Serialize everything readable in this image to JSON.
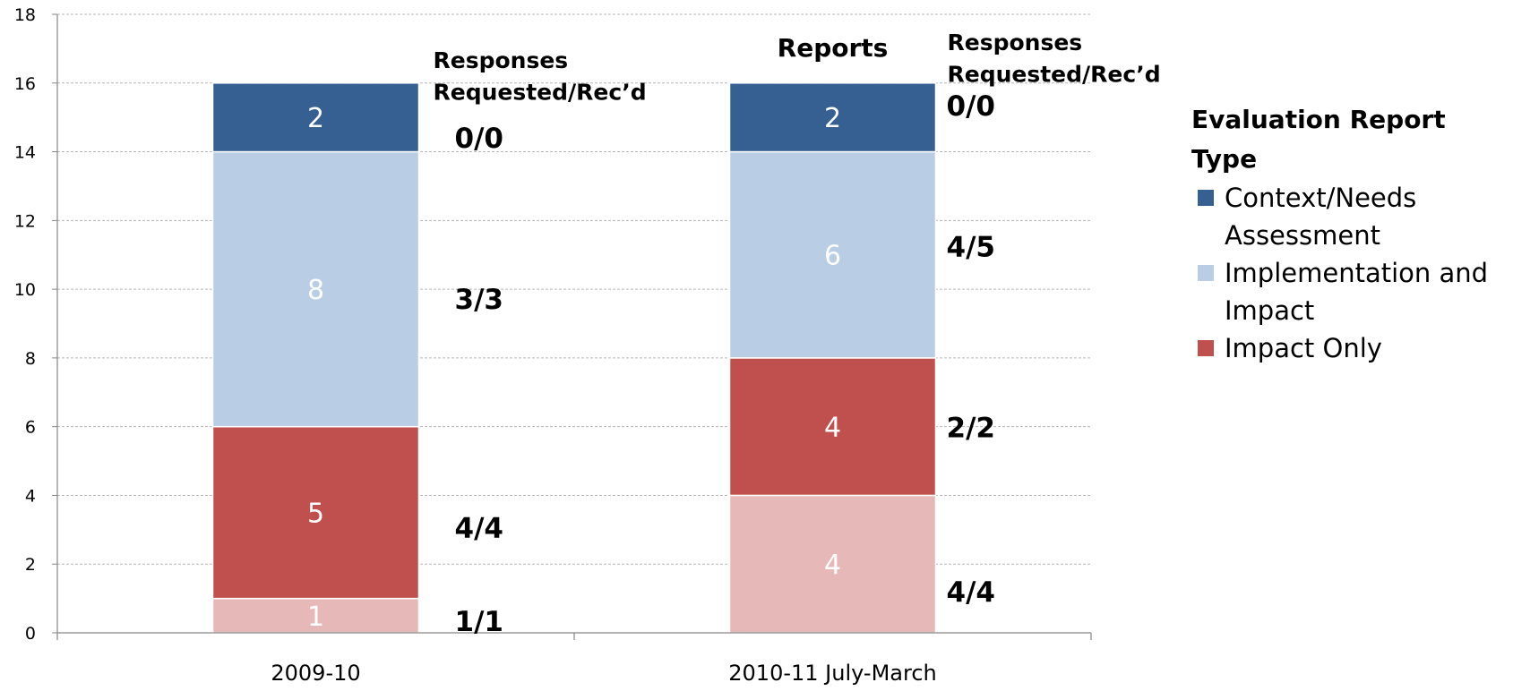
{
  "chart_data": {
    "type": "bar",
    "stacked": true,
    "categories": [
      "2009-10",
      "2010-11  July-March"
    ],
    "series": [
      {
        "name": "Impact Only",
        "color": "#E6B8B7",
        "values": [
          1,
          4
        ]
      },
      {
        "name": "Impact Only",
        "color": "#C0504D",
        "values": [
          5,
          4
        ]
      },
      {
        "name": "Implementation and Impact",
        "color": "#B9CDE5",
        "values": [
          8,
          6
        ]
      },
      {
        "name": "Context/Needs Assessment",
        "color": "#366092",
        "values": [
          2,
          2
        ]
      }
    ],
    "ylim": [
      0,
      18
    ],
    "yticks": [
      0,
      2,
      4,
      6,
      8,
      10,
      12,
      14,
      16,
      18
    ],
    "grid": true,
    "legend_position": "right",
    "legend_title": "Evaluation Report Type",
    "legend_items": [
      {
        "label": "Context/Needs Assessment",
        "color": "#366092"
      },
      {
        "label": "Implementation and Impact",
        "color": "#B9CDE5"
      },
      {
        "label": "Impact Only",
        "color": "#C0504D"
      }
    ],
    "annotations": {
      "bar_header": "Reports",
      "responses_header_1": "Responses Requested/Rec’d",
      "responses_header_2": "Responses Requested/Rec’d",
      "responses": [
        [
          "1/1",
          "4/4",
          "3/3",
          "0/0"
        ],
        [
          "4/4",
          "2/2",
          "4/5",
          "0/0"
        ]
      ]
    }
  }
}
